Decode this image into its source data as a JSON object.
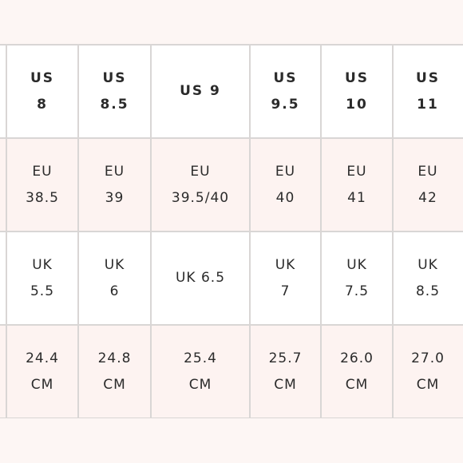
{
  "size_chart": {
    "us": [
      {
        "l1": "US",
        "l2": "8"
      },
      {
        "l1": "US",
        "l2": "8.5"
      },
      {
        "l1": "US 9",
        "l2": ""
      },
      {
        "l1": "US",
        "l2": "9.5"
      },
      {
        "l1": "US",
        "l2": "10"
      },
      {
        "l1": "US",
        "l2": "11"
      }
    ],
    "eu": [
      {
        "l1": "EU",
        "l2": "38.5"
      },
      {
        "l1": "EU",
        "l2": "39"
      },
      {
        "l1": "EU",
        "l2": "39.5/40"
      },
      {
        "l1": "EU",
        "l2": "40"
      },
      {
        "l1": "EU",
        "l2": "41"
      },
      {
        "l1": "EU",
        "l2": "42"
      }
    ],
    "uk": [
      {
        "l1": "UK",
        "l2": "5.5"
      },
      {
        "l1": "UK",
        "l2": "6"
      },
      {
        "l1": "UK 6.5",
        "l2": ""
      },
      {
        "l1": "UK",
        "l2": "7"
      },
      {
        "l1": "UK",
        "l2": "7.5"
      },
      {
        "l1": "UK",
        "l2": "8.5"
      }
    ],
    "cm": [
      {
        "l1": "24.4",
        "l2": "CM"
      },
      {
        "l1": "24.8",
        "l2": "CM"
      },
      {
        "l1": "25.4",
        "l2": "CM"
      },
      {
        "l1": "25.7",
        "l2": "CM"
      },
      {
        "l1": "26.0",
        "l2": "CM"
      },
      {
        "l1": "27.0",
        "l2": "CM"
      }
    ]
  }
}
